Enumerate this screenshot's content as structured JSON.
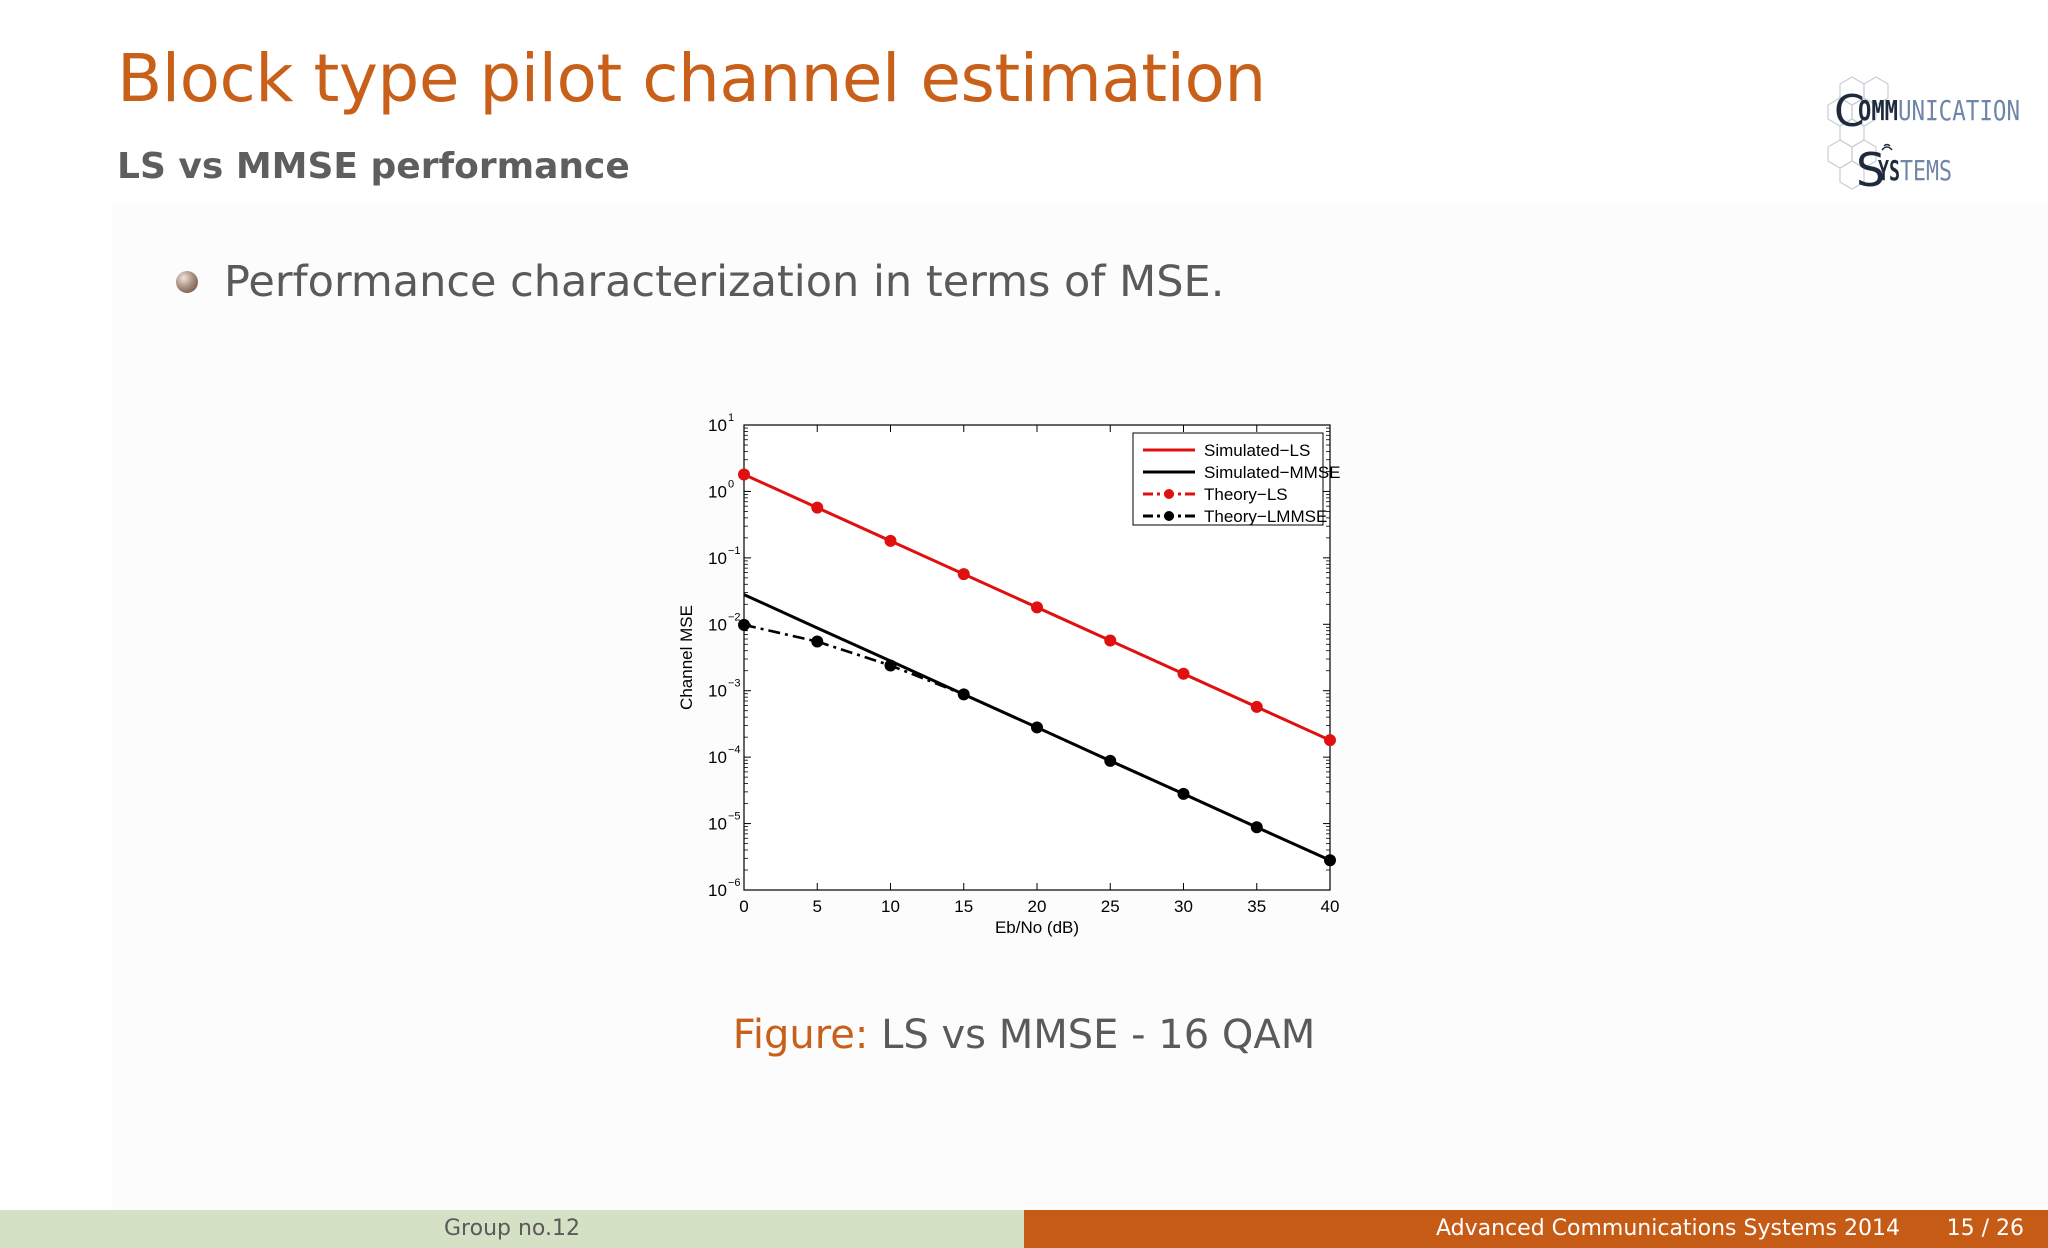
{
  "slide": {
    "title": "Block type pilot channel estimation",
    "subtitle": "LS vs MMSE performance",
    "bullet": "Performance characterization in terms of MSE.",
    "caption_label": "Figure:",
    "caption_text": "LS vs MMSE - 16 QAM"
  },
  "logo": {
    "line1_dark": "OMM",
    "line1_light": "UNICATION",
    "line2_dark": "YS",
    "line2_light": "TEMS"
  },
  "footer": {
    "left": "Group no.12",
    "course": "Advanced Communications Systems 2014",
    "page": "15 / 26"
  },
  "colors": {
    "accent": "#c8601a",
    "footer_left_bg": "#d5e1c5",
    "footer_right_bg": "#c65b15",
    "series_red": "#e01010",
    "series_black": "#000000"
  },
  "chart_data": {
    "type": "line",
    "xlabel": "Eb/No (dB)",
    "ylabel": "Channel MSE",
    "xlim": [
      0,
      40
    ],
    "ylim": [
      1e-06,
      10
    ],
    "yscale": "log",
    "xticks": [
      0,
      5,
      10,
      15,
      20,
      25,
      30,
      35,
      40
    ],
    "yticks": [
      {
        "base": "10",
        "exp": "1",
        "value": 10
      },
      {
        "base": "10",
        "exp": "0",
        "value": 1
      },
      {
        "base": "10",
        "exp": "−1",
        "value": 0.1
      },
      {
        "base": "10",
        "exp": "−2",
        "value": 0.01
      },
      {
        "base": "10",
        "exp": "−3",
        "value": 0.001
      },
      {
        "base": "10",
        "exp": "−4",
        "value": 0.0001
      },
      {
        "base": "10",
        "exp": "−5",
        "value": 1e-05
      },
      {
        "base": "10",
        "exp": "−6",
        "value": 1e-06
      }
    ],
    "legend_position": "top-right",
    "grid": false,
    "series": [
      {
        "name": "Simulated−LS",
        "color": "#e01010",
        "style": "solid",
        "marker": false,
        "x": [
          0,
          40
        ],
        "y": [
          1.8,
          0.00018
        ]
      },
      {
        "name": "Simulated−MMSE",
        "color": "#000000",
        "style": "solid",
        "marker": false,
        "x": [
          0,
          5,
          10,
          15,
          20,
          25,
          30,
          35,
          40
        ],
        "y": [
          0.028,
          0.0088,
          0.0028,
          0.00088,
          0.00028,
          8.8e-05,
          2.8e-05,
          8.8e-06,
          2.8e-06
        ]
      },
      {
        "name": "Theory−LS",
        "color": "#e01010",
        "style": "dashdot",
        "marker": true,
        "x": [
          0,
          5,
          10,
          15,
          20,
          25,
          30,
          35,
          40
        ],
        "y": [
          1.8,
          0.57,
          0.18,
          0.057,
          0.018,
          0.0057,
          0.0018,
          0.00057,
          0.00018
        ]
      },
      {
        "name": "Theory−LMMSE",
        "color": "#000000",
        "style": "dashdot",
        "marker": true,
        "x": [
          0,
          5,
          10,
          15,
          20,
          25,
          30,
          35,
          40
        ],
        "y": [
          0.0098,
          0.0055,
          0.0024,
          0.00088,
          0.00028,
          8.8e-05,
          2.8e-05,
          8.8e-06,
          2.8e-06
        ]
      }
    ]
  }
}
